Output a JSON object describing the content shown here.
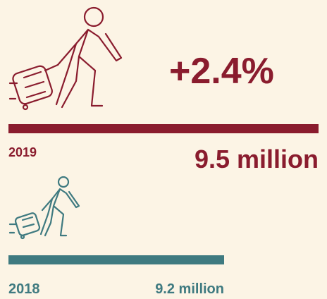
{
  "headline": "+2.4%",
  "items": [
    {
      "year": "2019",
      "value": "9.5 million"
    },
    {
      "year": "2018",
      "value": "9.2 million"
    }
  ]
}
